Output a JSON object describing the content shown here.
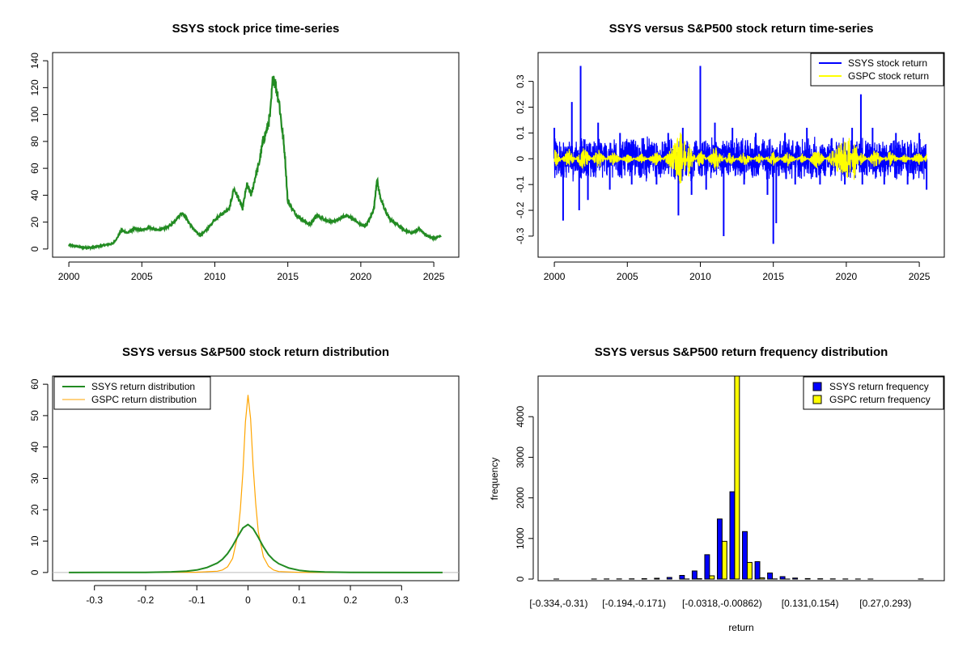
{
  "chart_data": [
    {
      "type": "line",
      "title": "SSYS stock price time-series",
      "xlabel": "",
      "ylabel": "",
      "xlim": [
        2000,
        2025.6
      ],
      "ylim": [
        0,
        140
      ],
      "x_ticks": [
        2000,
        2005,
        2010,
        2015,
        2020,
        2025
      ],
      "y_ticks": [
        0,
        20,
        40,
        60,
        80,
        100,
        120,
        140
      ],
      "grid": false,
      "color": "#228B22",
      "series": [
        {
          "x": [
            2000.0,
            2000.5,
            2001.0,
            2001.5,
            2002.0,
            2002.5,
            2003.0,
            2003.3,
            2003.6,
            2004.0,
            2004.5,
            2005.0,
            2005.5,
            2006.0,
            2006.5,
            2007.0,
            2007.5,
            2007.8,
            2008.2,
            2008.6,
            2009.0,
            2009.5,
            2010.0,
            2010.5,
            2011.0,
            2011.3,
            2011.6,
            2011.9,
            2012.2,
            2012.5,
            2012.8,
            2013.0,
            2013.3,
            2013.6,
            2013.8,
            2014.0,
            2014.2,
            2014.4,
            2014.6,
            2014.8,
            2015.0,
            2015.3,
            2015.6,
            2016.0,
            2016.5,
            2017.0,
            2017.5,
            2018.0,
            2018.5,
            2019.0,
            2019.5,
            2020.0,
            2020.3,
            2020.6,
            2020.9,
            2021.1,
            2021.3,
            2021.6,
            2022.0,
            2022.5,
            2023.0,
            2023.5,
            2024.0,
            2024.5,
            2025.0,
            2025.5
          ],
          "values": [
            3,
            2,
            1,
            1,
            2,
            3,
            4,
            8,
            14,
            12,
            15,
            14,
            16,
            14,
            15,
            18,
            24,
            27,
            20,
            14,
            10,
            15,
            22,
            26,
            30,
            45,
            38,
            30,
            48,
            40,
            55,
            62,
            80,
            90,
            100,
            130,
            120,
            110,
            90,
            70,
            35,
            30,
            25,
            22,
            18,
            25,
            22,
            20,
            22,
            25,
            22,
            18,
            17,
            22,
            30,
            52,
            40,
            30,
            22,
            18,
            14,
            12,
            15,
            10,
            8,
            10
          ]
        }
      ]
    },
    {
      "type": "line",
      "title": "SSYS versus S&P500 stock return time-series",
      "xlabel": "",
      "ylabel": "",
      "xlim": [
        2000,
        2025.6
      ],
      "ylim": [
        -0.35,
        0.38
      ],
      "x_ticks": [
        2000,
        2005,
        2010,
        2015,
        2020,
        2025
      ],
      "y_ticks": [
        -0.3,
        -0.2,
        -0.1,
        0.0,
        0.1,
        0.2,
        0.3
      ],
      "legend_position": "top-right",
      "series": [
        {
          "name": "SSYS stock return",
          "color": "#0000FF",
          "x": [
            2000.0,
            2000.6,
            2001.2,
            2001.7,
            2001.8,
            2002.3,
            2003.0,
            2003.8,
            2004.5,
            2005.3,
            2006.1,
            2007.0,
            2007.8,
            2008.5,
            2008.8,
            2009.4,
            2010.0,
            2010.4,
            2011.0,
            2011.6,
            2012.2,
            2013.0,
            2013.8,
            2014.6,
            2015.0,
            2015.2,
            2015.8,
            2016.5,
            2017.3,
            2018.2,
            2019.0,
            2019.9,
            2020.4,
            2021.0,
            2021.1,
            2021.8,
            2022.6,
            2023.4,
            2024.2,
            2025.0,
            2025.5
          ],
          "values": [
            0.12,
            -0.24,
            0.22,
            -0.2,
            0.36,
            -0.16,
            0.14,
            -0.12,
            0.1,
            -0.1,
            0.08,
            -0.1,
            0.1,
            -0.22,
            0.12,
            -0.14,
            0.36,
            -0.12,
            0.14,
            -0.3,
            0.12,
            -0.1,
            0.1,
            -0.14,
            -0.33,
            -0.25,
            0.1,
            -0.1,
            0.12,
            -0.1,
            0.08,
            -0.1,
            0.12,
            0.25,
            -0.1,
            0.12,
            -0.1,
            0.1,
            -0.1,
            0.1,
            -0.12
          ]
        },
        {
          "name": "GSPC stock return",
          "color": "#FFFF00",
          "x": [
            2000.0,
            2001.0,
            2002.0,
            2003.0,
            2004.0,
            2005.0,
            2006.0,
            2007.0,
            2008.0,
            2008.7,
            2008.9,
            2009.2,
            2010.0,
            2011.0,
            2012.0,
            2013.0,
            2014.0,
            2015.0,
            2016.0,
            2017.0,
            2018.0,
            2019.0,
            2020.2,
            2020.5,
            2021.0,
            2022.0,
            2023.0,
            2024.0,
            2025.0,
            2025.5
          ],
          "values": [
            0.04,
            -0.04,
            0.05,
            -0.04,
            0.03,
            -0.02,
            0.02,
            -0.03,
            0.04,
            0.11,
            -0.09,
            0.07,
            -0.04,
            0.05,
            -0.03,
            0.03,
            -0.02,
            0.03,
            -0.03,
            0.02,
            -0.04,
            0.03,
            0.09,
            -0.1,
            0.03,
            -0.04,
            0.03,
            -0.02,
            0.03,
            -0.02
          ]
        }
      ]
    },
    {
      "type": "line",
      "title": "SSYS versus S&P500 stock return distribution",
      "xlabel": "",
      "ylabel": "",
      "xlim": [
        -0.35,
        0.38
      ],
      "ylim": [
        0,
        60
      ],
      "x_ticks": [
        -0.3,
        -0.2,
        -0.1,
        0.0,
        0.1,
        0.2,
        0.3
      ],
      "y_ticks": [
        0,
        10,
        20,
        30,
        40,
        50,
        60
      ],
      "legend_position": "top-left",
      "series": [
        {
          "name": "SSYS return distribution",
          "color": "#228B22",
          "x": [
            -0.35,
            -0.2,
            -0.15,
            -0.12,
            -0.1,
            -0.08,
            -0.06,
            -0.05,
            -0.04,
            -0.03,
            -0.02,
            -0.01,
            0.0,
            0.01,
            0.02,
            0.03,
            0.04,
            0.05,
            0.06,
            0.08,
            0.1,
            0.12,
            0.15,
            0.2,
            0.38
          ],
          "values": [
            0.0,
            0.05,
            0.2,
            0.4,
            0.8,
            1.6,
            3.0,
            4.2,
            6.0,
            8.5,
            11.5,
            14.2,
            15.3,
            14.0,
            11.2,
            8.2,
            5.7,
            4.0,
            2.8,
            1.4,
            0.7,
            0.35,
            0.15,
            0.05,
            0.0
          ]
        },
        {
          "name": "GSPC return distribution",
          "color": "#FFA500",
          "x": [
            -0.35,
            -0.1,
            -0.06,
            -0.05,
            -0.04,
            -0.03,
            -0.02,
            -0.015,
            -0.01,
            -0.005,
            0.0,
            0.005,
            0.01,
            0.015,
            0.02,
            0.03,
            0.04,
            0.05,
            0.06,
            0.1,
            0.38
          ],
          "values": [
            0.0,
            0.1,
            0.4,
            0.8,
            1.8,
            4.5,
            12.0,
            20.0,
            32.0,
            48.0,
            56.5,
            49.0,
            34.0,
            22.0,
            13.0,
            5.0,
            2.0,
            0.8,
            0.3,
            0.05,
            0.0
          ]
        }
      ]
    },
    {
      "type": "bar",
      "title": "SSYS versus S&P500 return frequency distribution",
      "xlabel": "return",
      "ylabel": "frequency",
      "ylim": [
        0,
        5000
      ],
      "y_ticks": [
        0,
        1000,
        2000,
        3000,
        4000
      ],
      "legend_position": "top-right",
      "categories": [
        "[-0.334,-0.31)",
        "[-0.31,-0.287)",
        "[-0.287,-0.264)",
        "[-0.264,-0.241)",
        "[-0.241,-0.217)",
        "[-0.217,-0.194)",
        "[-0.194,-0.171)",
        "[-0.171,-0.148)",
        "[-0.148,-0.124)",
        "[-0.124,-0.101)",
        "[-0.101,-0.0782)",
        "[-0.0782,-0.055)",
        "[-0.055,-0.0318)",
        "[-0.0318,-0.00862)",
        "[-0.00862,0.0146)",
        "[0.0146,0.0378)",
        "[0.0378,0.061)",
        "[0.061,0.0842)",
        "[0.0842,0.107)",
        "[0.107,0.131)",
        "[0.131,0.154)",
        "[0.154,0.177)",
        "[0.177,0.2)",
        "[0.2,0.224)",
        "[0.224,0.247)",
        "[0.247,0.27)",
        "[0.27,0.293)",
        "[0.293,0.316)",
        "[0.316,0.34)",
        "[0.34,0.363)"
      ],
      "shown_tick_labels": [
        "[-0.334,-0.31)",
        "[-0.194,-0.171)",
        "[-0.0318,-0.00862)",
        "[0.131,0.154)",
        "[0.27,0.293)"
      ],
      "shown_tick_indices": [
        0,
        6,
        13,
        20,
        26
      ],
      "series": [
        {
          "name": "SSYS return frequency",
          "color": "#0000FF",
          "values": [
            1,
            0,
            0,
            2,
            3,
            4,
            6,
            10,
            20,
            40,
            90,
            200,
            600,
            1480,
            2150,
            1170,
            430,
            150,
            60,
            25,
            12,
            8,
            5,
            3,
            2,
            1,
            0,
            0,
            0,
            2
          ]
        },
        {
          "name": "GSPC return frequency",
          "color": "#FFFF00",
          "values": [
            0,
            0,
            0,
            0,
            0,
            0,
            0,
            0,
            0,
            0,
            2,
            10,
            80,
            930,
            5000,
            410,
            30,
            4,
            1,
            0,
            0,
            0,
            0,
            0,
            0,
            0,
            0,
            0,
            0,
            0
          ]
        }
      ]
    }
  ]
}
